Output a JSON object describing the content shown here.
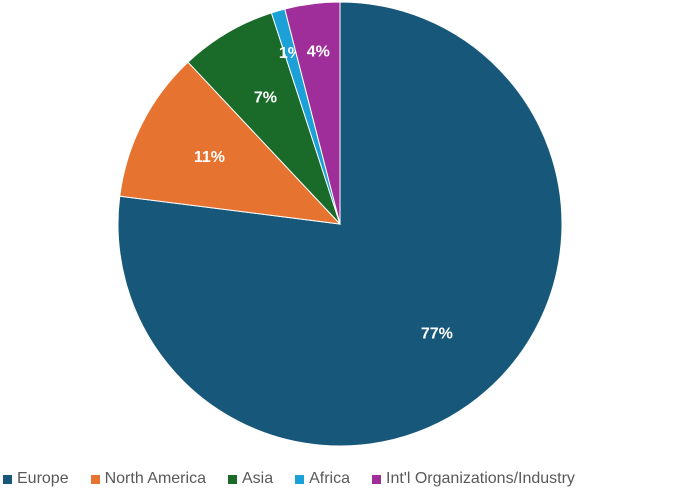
{
  "chart_data": {
    "type": "pie",
    "title": "",
    "categories": [
      "Europe",
      "North America",
      "Asia",
      "Africa",
      "Int'l Organizations/Industry"
    ],
    "values": [
      77,
      11,
      7,
      1,
      4
    ],
    "data_labels": [
      "77%",
      "11%",
      "7%",
      "1%",
      "4%"
    ],
    "colors": [
      "#17587a",
      "#e67330",
      "#1a6b2a",
      "#1ba1d8",
      "#a02e9a"
    ],
    "start_direction": "top, clockwise",
    "legend_position": "bottom"
  }
}
